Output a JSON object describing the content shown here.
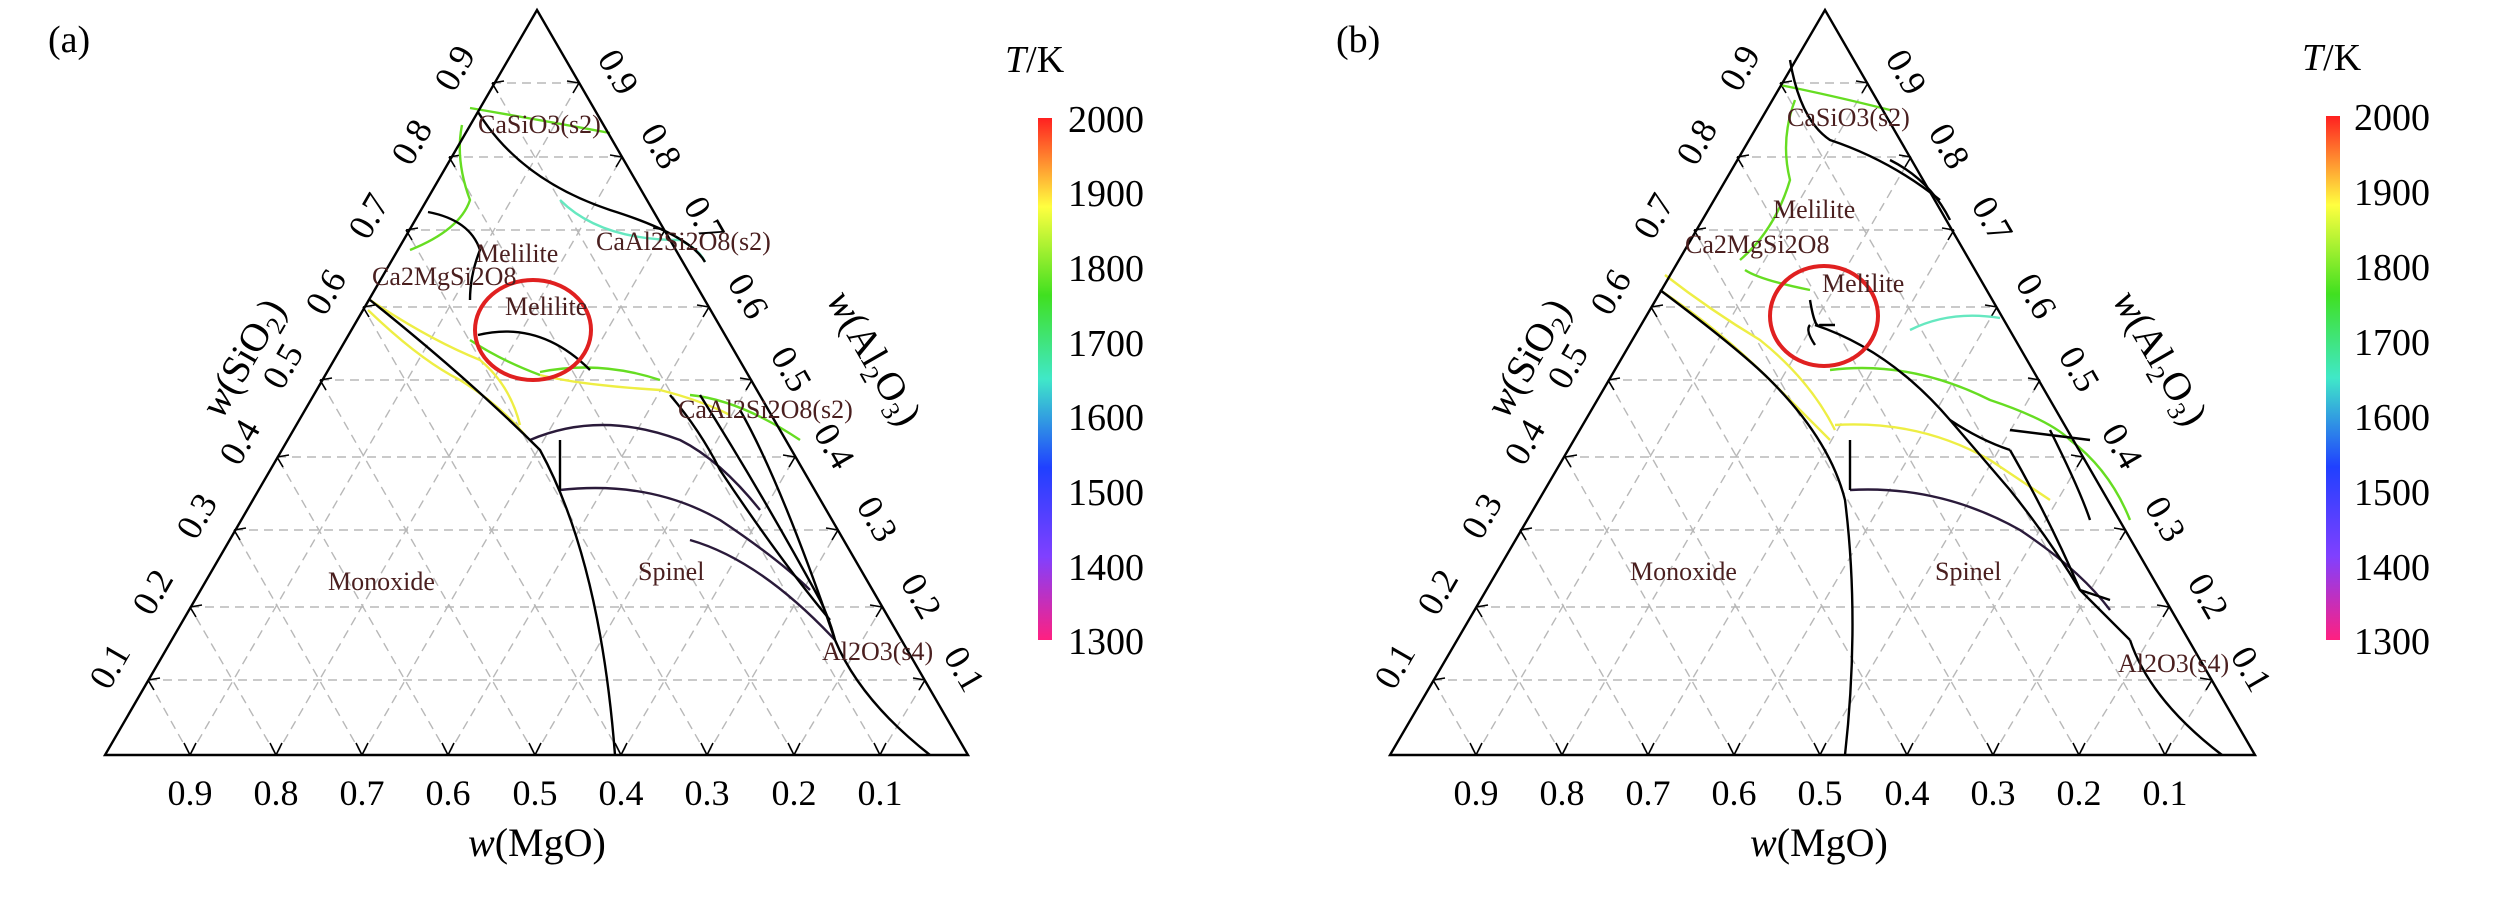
{
  "panels": [
    {
      "id": "a",
      "label": "(a)",
      "bottom_axis_label": "w(MgO)",
      "left_axis_label": "w(SiO2)",
      "right_axis_label": "w(Al2O3)",
      "bottom_ticks": [
        "0.9",
        "0.8",
        "0.7",
        "0.6",
        "0.5",
        "0.4",
        "0.3",
        "0.2",
        "0.1"
      ],
      "left_ticks": [
        "0.1",
        "0.2",
        "0.3",
        "0.4",
        "0.5",
        "0.6",
        "0.7",
        "0.8",
        "0.9"
      ],
      "right_ticks": [
        "0.9",
        "0.8",
        "0.7",
        "0.6",
        "0.5",
        "0.4",
        "0.3",
        "0.2",
        "0.1"
      ],
      "regions": {
        "casio3": "CaSiO3(s2)",
        "melilite_top": "Melilite",
        "anorthite_top": "CaAl2Si2O8(s2)",
        "akermanite": "Ca2MgSi2O8",
        "melilite_circle": "Melilite",
        "anorthite_mid": "CaAl2Si2O8(s2)",
        "monoxide": "Monoxide",
        "spinel": "Spinel",
        "al2o3": "Al2O3(s4)"
      }
    },
    {
      "id": "b",
      "label": "(b)",
      "bottom_axis_label": "w(MgO)",
      "left_axis_label": "w(SiO2)",
      "right_axis_label": "w(Al2O3)",
      "bottom_ticks": [
        "0.9",
        "0.8",
        "0.7",
        "0.6",
        "0.5",
        "0.4",
        "0.3",
        "0.2",
        "0.1"
      ],
      "left_ticks": [
        "0.1",
        "0.2",
        "0.3",
        "0.4",
        "0.5",
        "0.6",
        "0.7",
        "0.8",
        "0.9"
      ],
      "right_ticks": [
        "0.9",
        "0.8",
        "0.7",
        "0.6",
        "0.5",
        "0.4",
        "0.3",
        "0.2",
        "0.1"
      ],
      "regions": {
        "casio3": "CaSiO3(s2)",
        "melilite_top": "Melilite",
        "akermanite": "Ca2MgSi2O8",
        "melilite_circle": "Melilite",
        "monoxide": "Monoxide",
        "spinel": "Spinel",
        "al2o3": "Al2O3(s4)"
      }
    }
  ],
  "colorbar": {
    "title": "T/K",
    "ticks": [
      "2000",
      "1900",
      "1800",
      "1700",
      "1600",
      "1500",
      "1400",
      "1300"
    ],
    "min": 1300,
    "max": 2000,
    "gradient_colors": [
      "#ff2020",
      "#ffff40",
      "#40e020",
      "#40e8c8",
      "#2040ff",
      "#8040ff",
      "#ff2080"
    ]
  },
  "colors": {
    "boundary": "#000000",
    "highlight_circle": "#e02020",
    "curve_green": "#66dd22",
    "curve_yellow": "#eeee44",
    "curve_cyan": "#66e8c0",
    "curve_dark": "#2a1a3a"
  }
}
